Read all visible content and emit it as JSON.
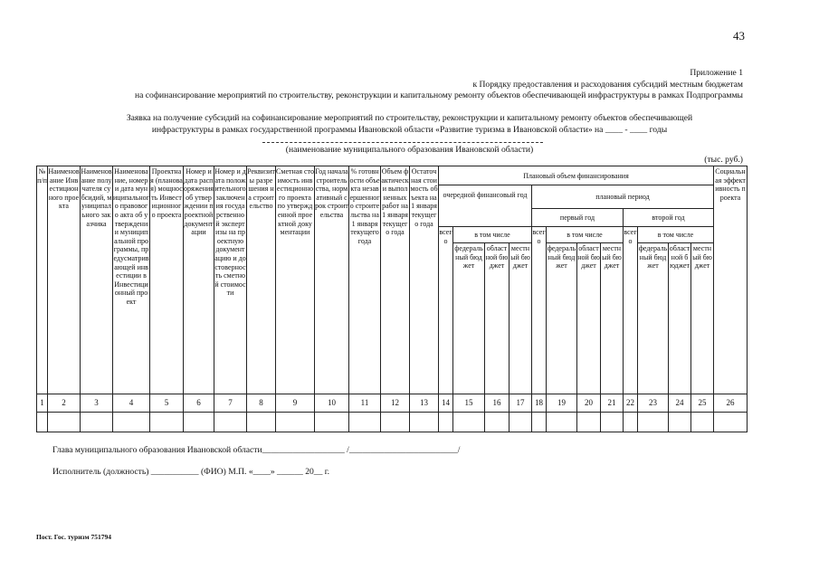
{
  "page_number": "43",
  "header": {
    "appendix": "Приложение 1",
    "line2": "к Порядку предоставления и расходования субсидий местным бюджетам",
    "line3": "на софинансирование мероприятий по строительству, реконструкции и капитальному ремонту объектов обеспечивающей инфраструктуры в рамках Подпрограммы"
  },
  "title": {
    "line1": "Заявка на получение субсидий на софинансирование мероприятий по строительству, реконструкции и капитальному ремонту объектов обеспечивающей",
    "line2": "инфраструктуры в рамках государственной программы Ивановской области «Развитие туризма в Ивановской области» на ____ - ____ годы",
    "municipality_caption": "(наименование муниципального образования Ивановской области)",
    "units": "(тыс. руб.)"
  },
  "table": {
    "columns": [
      "№ п/п",
      "Наименование Инвестиционного проекта",
      "Наименование получателя субсидий, муниципального заказчика",
      "Наименование, номер и дата муниципального правового акта об утверждении муниципальной программы, предусматривающей инвестиции в Инвестиционный проект",
      "Проектная (плановая) мощность Инвестиционного проекта",
      "Номер и дата распоряжения об утверждении проектной документации",
      "Номер и дата положительного заключения государственной экспертизы на проектную документацию и достоверность сметной стоимости",
      "Реквизиты разрешения на строительство",
      "Сметная стоимость инвестиционного проекта по утвержденной проектной документации",
      "Год начала строительства, нормативный срок строительства",
      "% готовности объекта незавершенного строительства на 1 января текущего года",
      "Объем фактически выполненных работ на 1 января текущего года",
      "Остаточная стоимость объекта на 1 января текущего года"
    ],
    "planned_volume": "Плановый объем финансирования",
    "next_fiscal_year": "очередной финансовый год",
    "planning_period": "плановый период",
    "first_year": "первый год",
    "second_year": "второй год",
    "total": "всего",
    "including": "в том числе",
    "federal": "федеральный бюджет",
    "regional": "областной бюджет",
    "local": "местный бюджет",
    "social_efficiency": "Социальная эффективность проекта",
    "numbers": [
      "1",
      "2",
      "3",
      "4",
      "5",
      "6",
      "7",
      "8",
      "9",
      "10",
      "11",
      "12",
      "13",
      "14",
      "15",
      "16",
      "17",
      "18",
      "19",
      "20",
      "21",
      "22",
      "23",
      "24",
      "25",
      "26"
    ]
  },
  "footer": {
    "head_line": "Глава муниципального образования Ивановской области___________________ /_________________________/",
    "executor_line": "Исполнитель (должность) ___________ (ФИО) М.П. «____» ______ 20__ г.",
    "code": "Пост. Гос. туризм 751794"
  }
}
